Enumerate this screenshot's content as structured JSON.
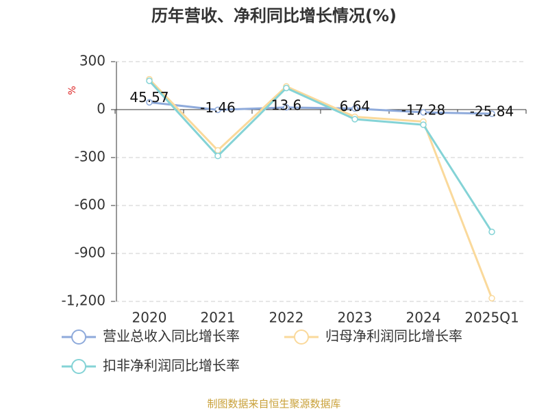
{
  "chart_data": {
    "type": "line",
    "title": "历年营收、净利同比增长情况(%)",
    "y_unit": "%",
    "source": "制图数据来自恒生聚源数据库",
    "categories": [
      "2020",
      "2021",
      "2022",
      "2023",
      "2024",
      "2025Q1"
    ],
    "series": [
      {
        "name": "营业总收入同比增长率",
        "color": "#8eaadb",
        "values": [
          45.57,
          -1.46,
          13.6,
          6.64,
          -17.28,
          -25.84
        ],
        "show_labels": true
      },
      {
        "name": "归母净利润同比增长率",
        "color": "#fad99b",
        "values": [
          190,
          -255,
          145,
          -45,
          -75,
          -1180
        ]
      },
      {
        "name": "扣非净利润同比增长率",
        "color": "#84d3d6",
        "values": [
          180,
          -290,
          135,
          -60,
          -95,
          -765
        ]
      }
    ],
    "ylim": [
      -1200,
      300
    ],
    "yticks": [
      300,
      0,
      -300,
      -600,
      -900,
      {
        "value": -1200,
        "label": "-1,200"
      }
    ],
    "grid": true
  }
}
